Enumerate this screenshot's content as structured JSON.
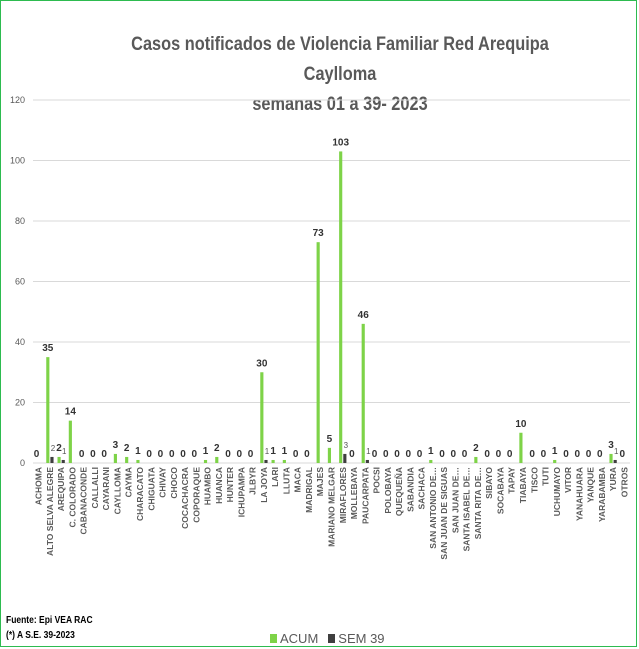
{
  "colors": {
    "acum": "#7ed348",
    "sem": "#3f3f3f",
    "axis_text": "#595959",
    "grid": "#d9d9d9",
    "label": "#333333"
  },
  "footer": {
    "source_line": "Fuente: Epi VEA RAC",
    "note_line": "(*) A S.E. 39-2023"
  },
  "chart_data": {
    "type": "bar",
    "title_lines": [
      "Casos notificados  de Violencia Familiar Red Arequipa Caylloma",
      "semanas 01 a 39- 2023"
    ],
    "xlabel": "",
    "ylabel": "",
    "ylim": [
      0,
      120
    ],
    "yticks": [
      0,
      20,
      40,
      60,
      80,
      100,
      120
    ],
    "grid": true,
    "legend_position": "bottom",
    "categories": [
      "ACHOMA",
      "ALTO SELVA ALEGRE",
      "AREQUIPA",
      "C. COLORADO",
      "CABANACONDE",
      "CALLALLI",
      "CAYARANI",
      "CAYLLOMA",
      "CAYMA",
      "CHARACATO",
      "CHIGUATA",
      "CHIVAY",
      "CHOCO",
      "COCACHACRA",
      "COPORAQUE",
      "HUAMBO",
      "HUANCA",
      "HUNTER",
      "ICHUPAMPA",
      "JLBYR",
      "LA JOYA",
      "LARI",
      "LLUTA",
      "MACA",
      "MADRIGAL",
      "MAJES",
      "MARIANO MELGAR",
      "MIRAFLORES",
      "MOLLEBAYA",
      "PAUCARPATA",
      "POCSI",
      "POLOBAYA",
      "QUEQUEÑA",
      "SABANDIA",
      "SACHACA",
      "SAN ANTONIO DE…",
      "SAN JUAN DE SIGUAS",
      "SAN JUAN DE…",
      "SANTA ISABEL DE…",
      "SANTA RITA DE…",
      "SIBAYO",
      "SOCABAYA",
      "TAPAY",
      "TIABAYA",
      "TISCO",
      "TUTI",
      "UCHUMAYO",
      "VITOR",
      "YANAHUARA",
      "YANQUE",
      "YARABAMBA",
      "YURA",
      "OTROS"
    ],
    "series": [
      {
        "name": "ACUM",
        "values": [
          0,
          35,
          2,
          14,
          0,
          0,
          0,
          3,
          2,
          1,
          0,
          0,
          0,
          0,
          0,
          1,
          2,
          0,
          0,
          0,
          30,
          1,
          1,
          0,
          0,
          73,
          5,
          103,
          0,
          46,
          0,
          0,
          0,
          0,
          0,
          1,
          0,
          0,
          0,
          2,
          0,
          0,
          0,
          10,
          0,
          0,
          1,
          0,
          0,
          0,
          0,
          3,
          0
        ]
      },
      {
        "name": "SEM 39",
        "values": [
          0,
          2,
          1,
          0,
          0,
          0,
          0,
          0,
          0,
          0,
          0,
          0,
          0,
          0,
          0,
          0,
          0,
          0,
          0,
          0,
          1,
          0,
          0,
          0,
          0,
          0,
          0,
          3,
          0,
          1,
          0,
          0,
          0,
          0,
          0,
          0,
          0,
          0,
          0,
          0,
          0,
          0,
          0,
          0,
          0,
          0,
          0,
          0,
          0,
          0,
          0,
          1,
          0
        ]
      }
    ]
  }
}
